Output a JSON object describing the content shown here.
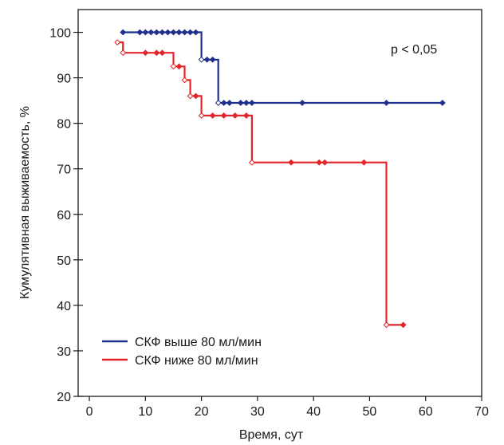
{
  "chart_data": {
    "type": "line",
    "step": true,
    "title": "",
    "xlabel": "Время, сут",
    "ylabel": "Кумулятивная выживаемость, %",
    "xlim": [
      -2,
      70
    ],
    "ylim": [
      20,
      105
    ],
    "xticks": [
      0,
      10,
      20,
      30,
      40,
      50,
      60,
      70
    ],
    "yticks": [
      20,
      30,
      40,
      50,
      60,
      70,
      80,
      90,
      100
    ],
    "grid": false,
    "legend_position": "bottom-left",
    "annotation": "p < 0,05",
    "series": [
      {
        "name": "СКФ выше 80 мл/мин",
        "color": "#1f2f8c",
        "line": [
          [
            6,
            100
          ],
          [
            20,
            100
          ],
          [
            20,
            94
          ],
          [
            23,
            94
          ],
          [
            23,
            84.5
          ],
          [
            63,
            84.5
          ]
        ],
        "censored": [
          [
            6,
            100
          ],
          [
            9,
            100
          ],
          [
            10,
            100
          ],
          [
            11,
            100
          ],
          [
            12,
            100
          ],
          [
            13,
            100
          ],
          [
            14,
            100
          ],
          [
            15,
            100
          ],
          [
            16,
            100
          ],
          [
            17,
            100
          ],
          [
            18,
            100
          ],
          [
            19,
            100
          ],
          [
            20,
            94
          ],
          [
            21,
            94
          ],
          [
            22,
            94
          ],
          [
            23,
            84.5
          ],
          [
            24,
            84.5
          ],
          [
            25,
            84.5
          ],
          [
            27,
            84.5
          ],
          [
            28,
            84.5
          ],
          [
            29,
            84.5
          ],
          [
            38,
            84.5
          ],
          [
            53,
            84.5
          ],
          [
            63,
            84.5
          ]
        ]
      },
      {
        "name": "СКФ ниже 80 мл/мин",
        "color": "#e3242b",
        "line": [
          [
            5,
            97.8
          ],
          [
            6,
            97.8
          ],
          [
            6,
            95.5
          ],
          [
            15,
            95.5
          ],
          [
            15,
            92.5
          ],
          [
            17,
            92.5
          ],
          [
            17,
            89.5
          ],
          [
            18,
            89.5
          ],
          [
            18,
            86
          ],
          [
            20,
            86
          ],
          [
            20,
            81.7
          ],
          [
            29,
            81.7
          ],
          [
            29,
            71.4
          ],
          [
            53,
            71.4
          ],
          [
            53,
            35.7
          ],
          [
            56,
            35.7
          ]
        ],
        "censored": [
          [
            5,
            97.8
          ],
          [
            6,
            95.5
          ],
          [
            10,
            95.5
          ],
          [
            12,
            95.5
          ],
          [
            13,
            95.5
          ],
          [
            15,
            92.5
          ],
          [
            16,
            92.5
          ],
          [
            17,
            89.5
          ],
          [
            18,
            86
          ],
          [
            19,
            86
          ],
          [
            20,
            81.7
          ],
          [
            22,
            81.7
          ],
          [
            24,
            81.7
          ],
          [
            26,
            81.7
          ],
          [
            28,
            81.7
          ],
          [
            29,
            71.4
          ],
          [
            36,
            71.4
          ],
          [
            41,
            71.4
          ],
          [
            42,
            71.4
          ],
          [
            49,
            71.4
          ],
          [
            53,
            35.7
          ],
          [
            56,
            35.7
          ]
        ]
      }
    ]
  }
}
